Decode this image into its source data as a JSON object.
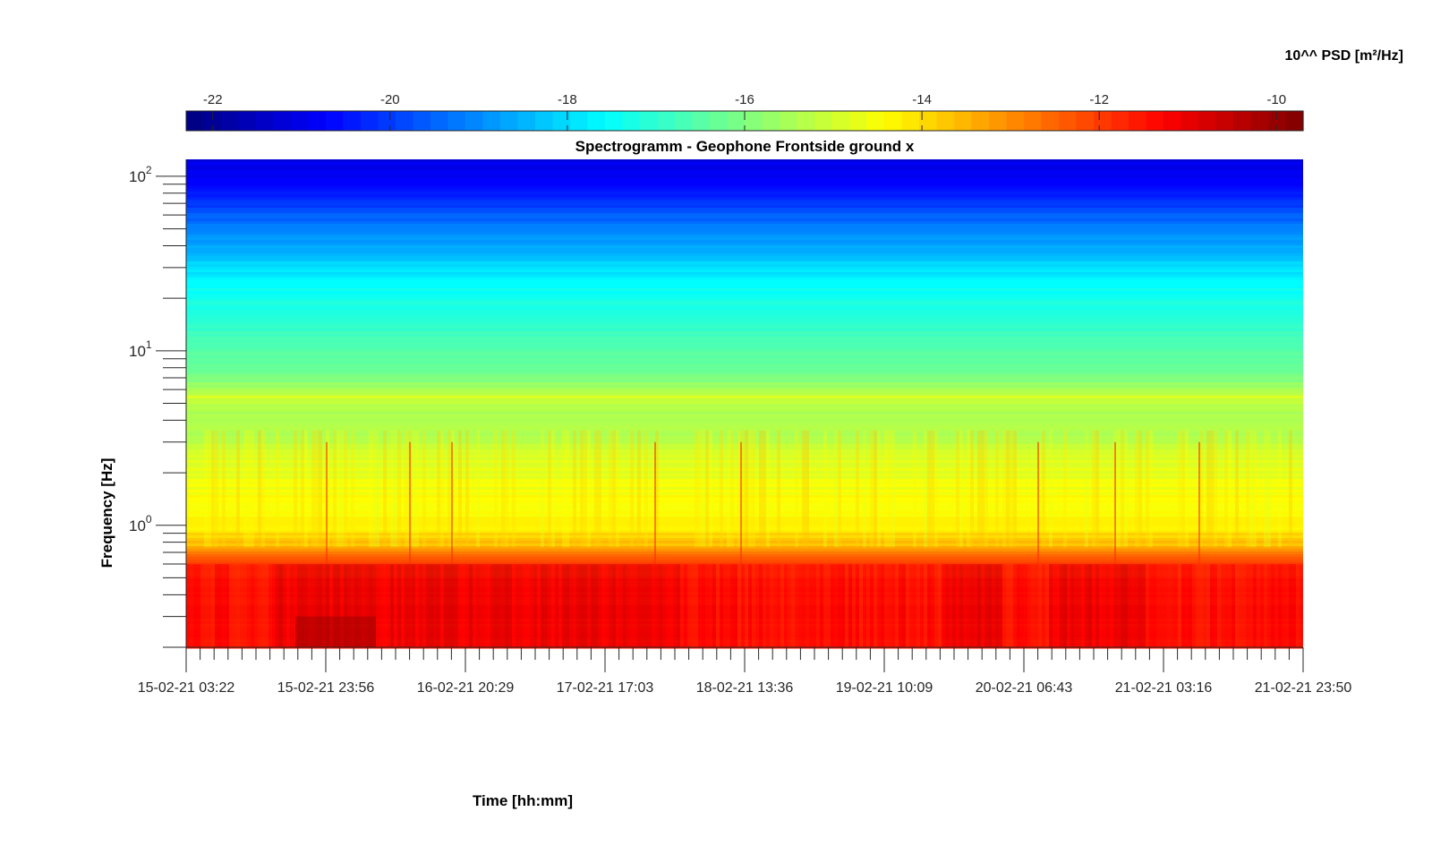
{
  "chart_data": {
    "type": "heatmap",
    "title": "Spectrogramm - Geophone Frontside ground x",
    "xlabel": "Time [hh:mm]",
    "ylabel": "Frequency [Hz]",
    "colorbar_label": "10^^ PSD [m²/Hz]",
    "colormap": "jet",
    "colorbar_location": "top",
    "clim": [
      -22.3,
      -9.7
    ],
    "colorbar_ticks": [
      -22,
      -20,
      -18,
      -16,
      -14,
      -12,
      -10
    ],
    "colorbar_tick_labels": [
      "-22",
      "-20",
      "-18",
      "-16",
      "-14",
      "-12",
      "-10"
    ],
    "x_tick_labels": [
      "15-02-21 03:22",
      "15-02-21 23:56",
      "16-02-21 20:29",
      "17-02-21 17:03",
      "18-02-21 13:36",
      "19-02-21 10:09",
      "20-02-21 06:43",
      "21-02-21 03:16",
      "21-02-21 23:50"
    ],
    "x_minor_ticks_per_major": 10,
    "y_scale": "log",
    "ylim": [
      0.2,
      125
    ],
    "y_tick_values": [
      1,
      10,
      100
    ],
    "y_tick_labels": [
      {
        "base": "10",
        "exp": "0"
      },
      {
        "base": "10",
        "exp": "1"
      },
      {
        "base": "10",
        "exp": "2"
      }
    ],
    "grid": false,
    "psd_profile": [
      {
        "freq_hz": 0.2,
        "log_psd": -11.4
      },
      {
        "freq_hz": 0.3,
        "log_psd": -11.3
      },
      {
        "freq_hz": 0.45,
        "log_psd": -11.4
      },
      {
        "freq_hz": 0.6,
        "log_psd": -11.9
      },
      {
        "freq_hz": 0.75,
        "log_psd": -13.5
      },
      {
        "freq_hz": 1.0,
        "log_psd": -14.3
      },
      {
        "freq_hz": 1.5,
        "log_psd": -14.5
      },
      {
        "freq_hz": 2.5,
        "log_psd": -14.9
      },
      {
        "freq_hz": 4.0,
        "log_psd": -15.6
      },
      {
        "freq_hz": 5.5,
        "log_psd": -15.0
      },
      {
        "freq_hz": 7.0,
        "log_psd": -16.1
      },
      {
        "freq_hz": 12.0,
        "log_psd": -16.8
      },
      {
        "freq_hz": 25.0,
        "log_psd": -17.6
      },
      {
        "freq_hz": 40.0,
        "log_psd": -18.7
      },
      {
        "freq_hz": 60.0,
        "log_psd": -19.6
      },
      {
        "freq_hz": 90.0,
        "log_psd": -20.8
      },
      {
        "freq_hz": 125.0,
        "log_psd": -21.0
      }
    ]
  }
}
